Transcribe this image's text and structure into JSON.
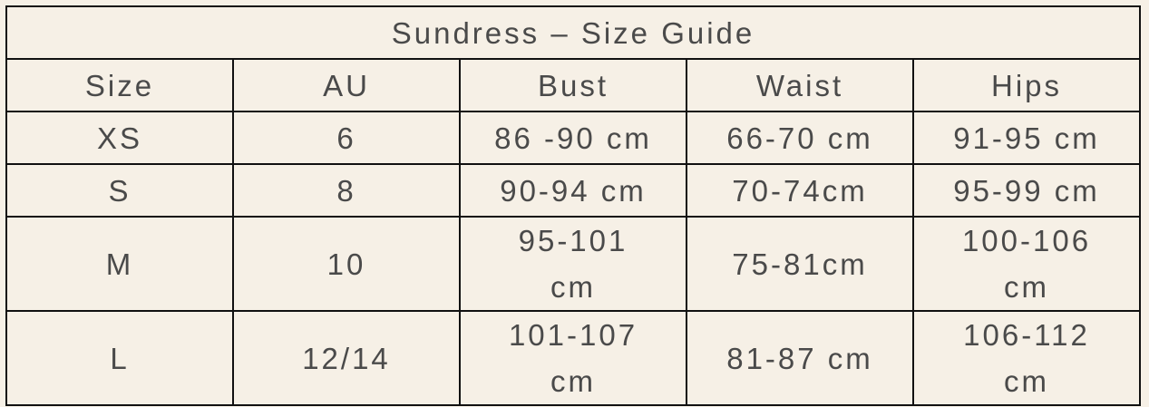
{
  "title": "Sundress – Size Guide",
  "headers": [
    "Size",
    "AU",
    "Bust",
    "Waist",
    "Hips"
  ],
  "rows": [
    [
      "XS",
      "6",
      "86 -90 cm",
      "66-70 cm",
      "91-95 cm"
    ],
    [
      "S",
      "8",
      "90-94 cm",
      "70-74cm",
      "95-99 cm"
    ],
    [
      "M",
      "10",
      "95-101 cm",
      "75-81cm",
      "100-106 cm"
    ],
    [
      "L",
      "12/14",
      "101-107 cm",
      "81-87 cm",
      "106-112 cm"
    ]
  ],
  "colors": {
    "background": "#f6f0e6",
    "text": "#4a4a4a",
    "border": "#111111"
  }
}
